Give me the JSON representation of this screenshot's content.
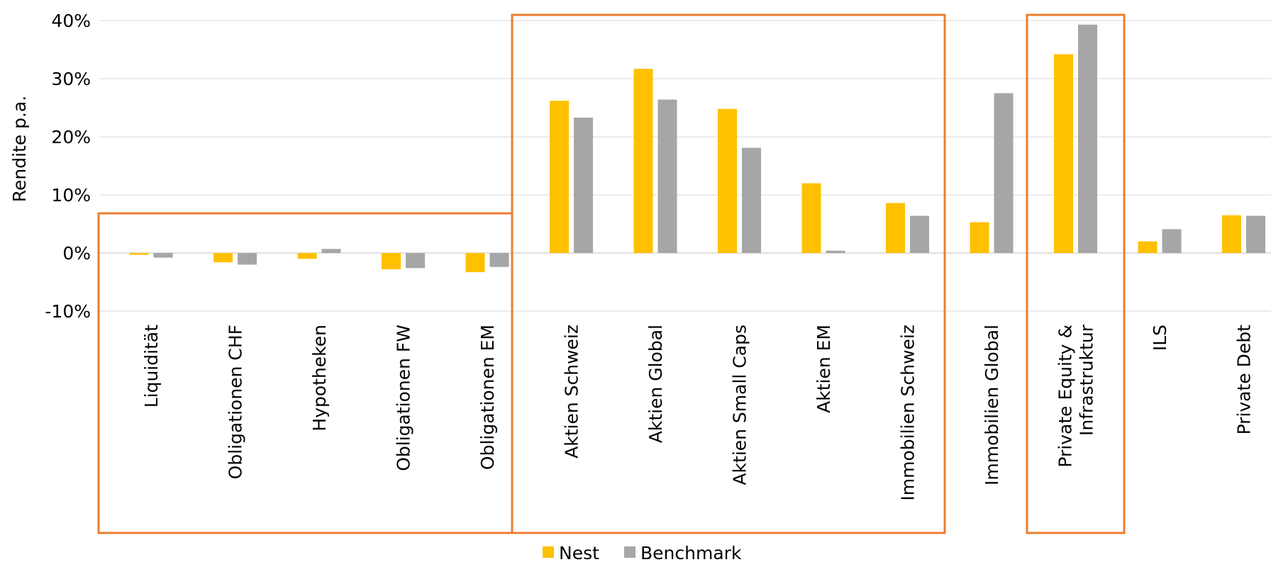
{
  "chart_data": {
    "type": "bar",
    "title": "",
    "xlabel": "",
    "ylabel": "Rendite p.a.",
    "ylim": [
      -10,
      40
    ],
    "yticks": [
      -10,
      0,
      10,
      20,
      30,
      40
    ],
    "ytick_labels": [
      "-10%",
      "0%",
      "10%",
      "20%",
      "30%",
      "40%"
    ],
    "grid": true,
    "legend_position": "bottom",
    "categories": [
      [
        "Liquidität"
      ],
      [
        "Obligationen CHF"
      ],
      [
        "Hypotheken"
      ],
      [
        "Obligationen FW"
      ],
      [
        "Obligationen EM"
      ],
      [
        "Aktien Schweiz"
      ],
      [
        "Aktien Global"
      ],
      [
        "Aktien Small Caps"
      ],
      [
        "Aktien EM"
      ],
      [
        "Immobilien Schweiz"
      ],
      [
        "Immobilien Global"
      ],
      [
        "Private Equity &",
        "Infrastruktur"
      ],
      [
        "ILS"
      ],
      [
        "Private Debt"
      ]
    ],
    "series": [
      {
        "name": "Nest",
        "color": "#FFC000",
        "values": [
          -0.3,
          -1.6,
          -1.0,
          -2.8,
          -3.3,
          26.2,
          31.7,
          24.8,
          12.0,
          8.6,
          5.3,
          34.2,
          2.0,
          6.5
        ]
      },
      {
        "name": "Benchmark",
        "color": "#A6A6A6",
        "values": [
          -0.8,
          -2.0,
          0.7,
          -2.6,
          -2.4,
          23.3,
          26.4,
          18.1,
          0.4,
          6.4,
          27.5,
          39.3,
          4.1,
          6.4
        ]
      }
    ],
    "group_boxes": {
      "color": "#ED7D31"
    }
  }
}
